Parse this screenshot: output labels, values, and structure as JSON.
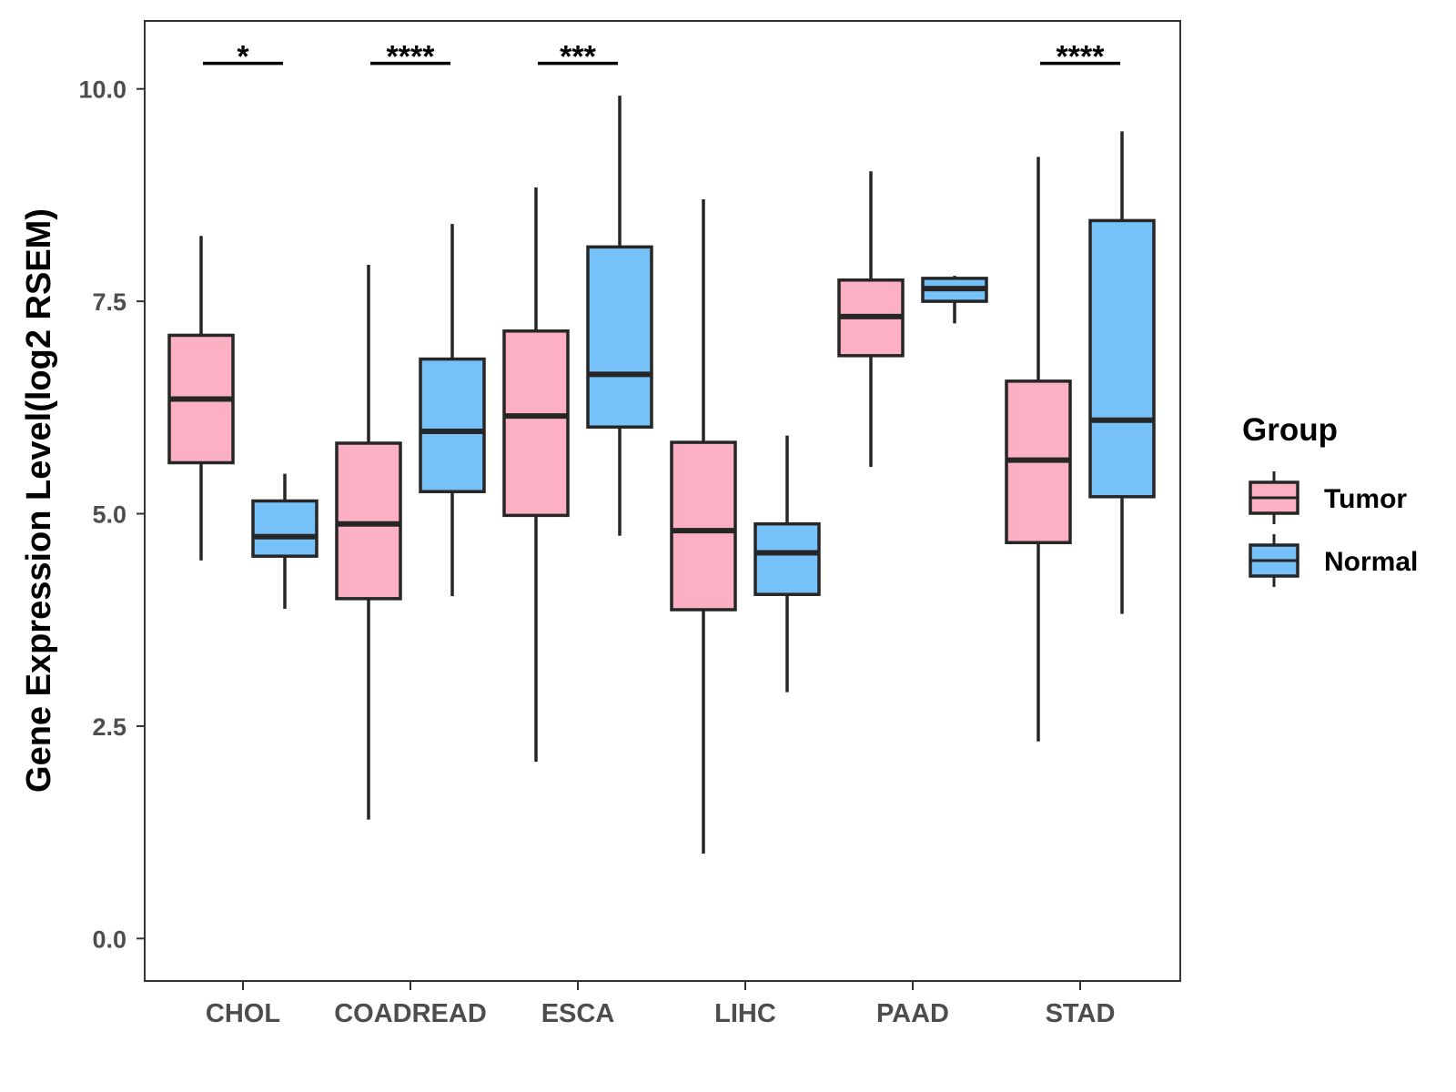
{
  "chart_data": {
    "type": "boxplot",
    "ylabel": "Gene Expression Level(log2 RSEM)",
    "xlabel": "",
    "ylim": [
      -0.5,
      10.8
    ],
    "yticks": [
      0.0,
      2.5,
      5.0,
      7.5,
      10.0
    ],
    "ytick_labels": [
      "0.0",
      "2.5",
      "5.0",
      "7.5",
      "10.0"
    ],
    "categories": [
      "CHOL",
      "COADREAD",
      "ESCA",
      "LIHC",
      "PAAD",
      "STAD"
    ],
    "legend": {
      "title": "Group",
      "position": "right"
    },
    "groups": [
      {
        "name": "Tumor",
        "color": "#FBB1C3"
      },
      {
        "name": "Normal",
        "color": "#77C1F9"
      }
    ],
    "box_edge_color": "#262626",
    "series": [
      {
        "name": "Tumor",
        "boxes": [
          {
            "category": "CHOL",
            "min": 4.45,
            "q1": 5.6,
            "median": 6.35,
            "q3": 7.1,
            "max": 8.27
          },
          {
            "category": "COADREAD",
            "min": 1.4,
            "q1": 4.0,
            "median": 4.88,
            "q3": 5.83,
            "max": 7.93
          },
          {
            "category": "ESCA",
            "min": 2.08,
            "q1": 4.98,
            "median": 6.15,
            "q3": 7.15,
            "max": 8.84
          },
          {
            "category": "LIHC",
            "min": 1.0,
            "q1": 3.87,
            "median": 4.8,
            "q3": 5.84,
            "max": 8.7
          },
          {
            "category": "PAAD",
            "min": 5.55,
            "q1": 6.86,
            "median": 7.32,
            "q3": 7.75,
            "max": 9.03
          },
          {
            "category": "STAD",
            "min": 2.32,
            "q1": 4.66,
            "median": 5.63,
            "q3": 6.56,
            "max": 9.2
          }
        ]
      },
      {
        "name": "Normal",
        "boxes": [
          {
            "category": "CHOL",
            "min": 3.88,
            "q1": 4.5,
            "median": 4.73,
            "q3": 5.15,
            "max": 5.47
          },
          {
            "category": "COADREAD",
            "min": 4.03,
            "q1": 5.26,
            "median": 5.97,
            "q3": 6.82,
            "max": 8.41
          },
          {
            "category": "ESCA",
            "min": 4.74,
            "q1": 6.02,
            "median": 6.64,
            "q3": 8.14,
            "max": 9.92
          },
          {
            "category": "LIHC",
            "min": 2.9,
            "q1": 4.05,
            "median": 4.54,
            "q3": 4.88,
            "max": 5.92
          },
          {
            "category": "PAAD",
            "min": 7.24,
            "q1": 7.5,
            "median": 7.65,
            "q3": 7.77,
            "max": 7.8
          },
          {
            "category": "STAD",
            "min": 3.82,
            "q1": 5.2,
            "median": 6.1,
            "q3": 8.45,
            "max": 9.5
          }
        ]
      }
    ],
    "significance": [
      {
        "category": "CHOL",
        "label": "*"
      },
      {
        "category": "COADREAD",
        "label": "****"
      },
      {
        "category": "ESCA",
        "label": "***"
      },
      {
        "category": "STAD",
        "label": "****"
      }
    ],
    "significance_y": 10.3,
    "grid": false
  }
}
